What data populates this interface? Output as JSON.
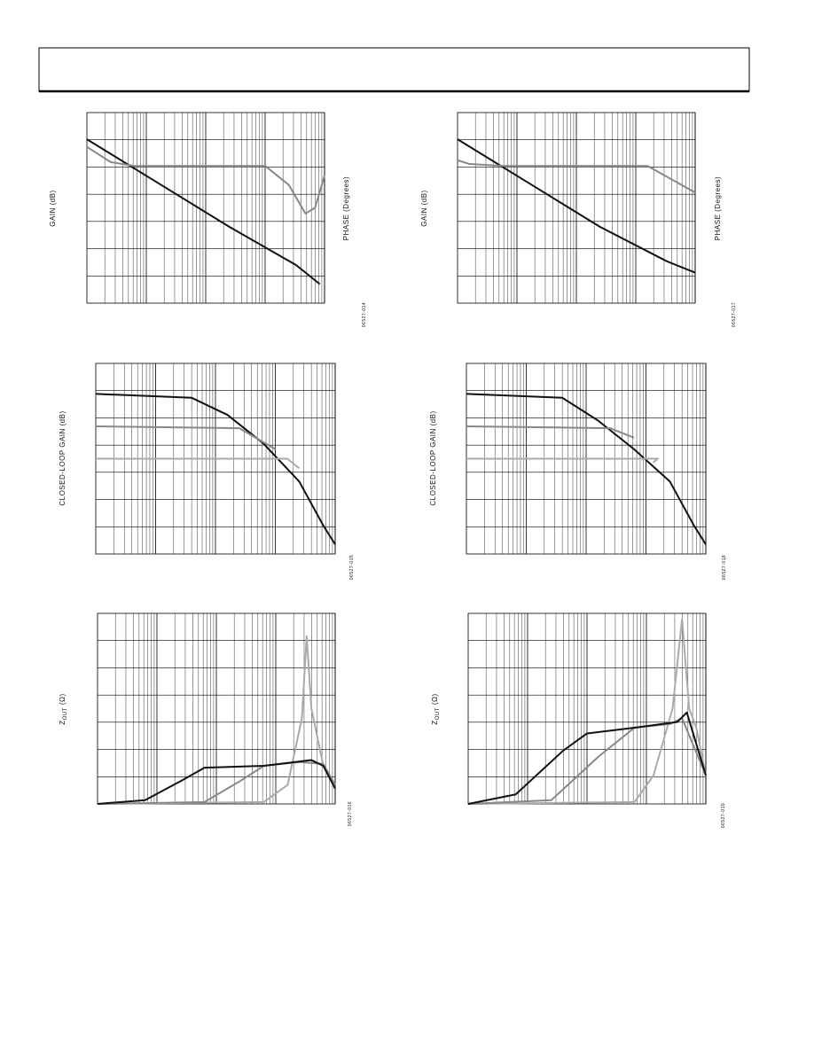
{
  "figures": [
    {
      "y_label": "GAIN (dB)",
      "y2_label": "PHASE (Degrees)",
      "figure_id": "06527-014"
    },
    {
      "y_label": "GAIN (dB)",
      "y2_label": "PHASE (Degrees)",
      "figure_id": "06527-017"
    },
    {
      "y_label": "CLOSED-LOOP GAIN (dB)",
      "figure_id": "06527-015"
    },
    {
      "y_label": "CLOSED-LOOP GAIN (dB)",
      "figure_id": "06527-018"
    },
    {
      "y_label": {
        "main": "Z",
        "sub": "OUT",
        "unit": "(Ω)"
      },
      "figure_id": "06527-016"
    },
    {
      "y_label": {
        "main": "Z",
        "sub": "OUT",
        "unit": "(Ω)"
      },
      "figure_id": "06527-019"
    }
  ]
}
